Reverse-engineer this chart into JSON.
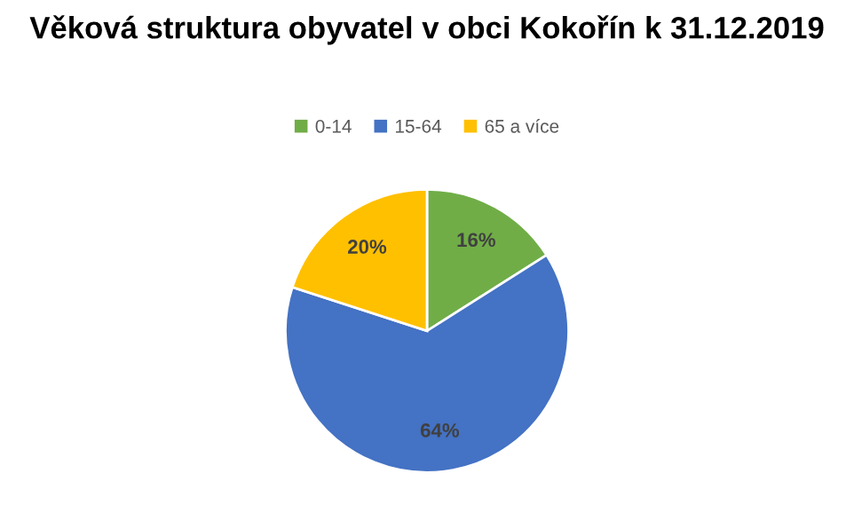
{
  "chart_data": {
    "type": "pie",
    "title": "Věková struktura obyvatel v obci Kokořín k 31.12.2019",
    "categories": [
      "0-14",
      "15-64",
      "65 a více"
    ],
    "values": [
      16,
      64,
      20
    ],
    "colors": [
      "#70ad47",
      "#4472c4",
      "#ffc000"
    ],
    "value_labels": [
      "16%",
      "64%",
      "20%"
    ],
    "legend": "top"
  }
}
